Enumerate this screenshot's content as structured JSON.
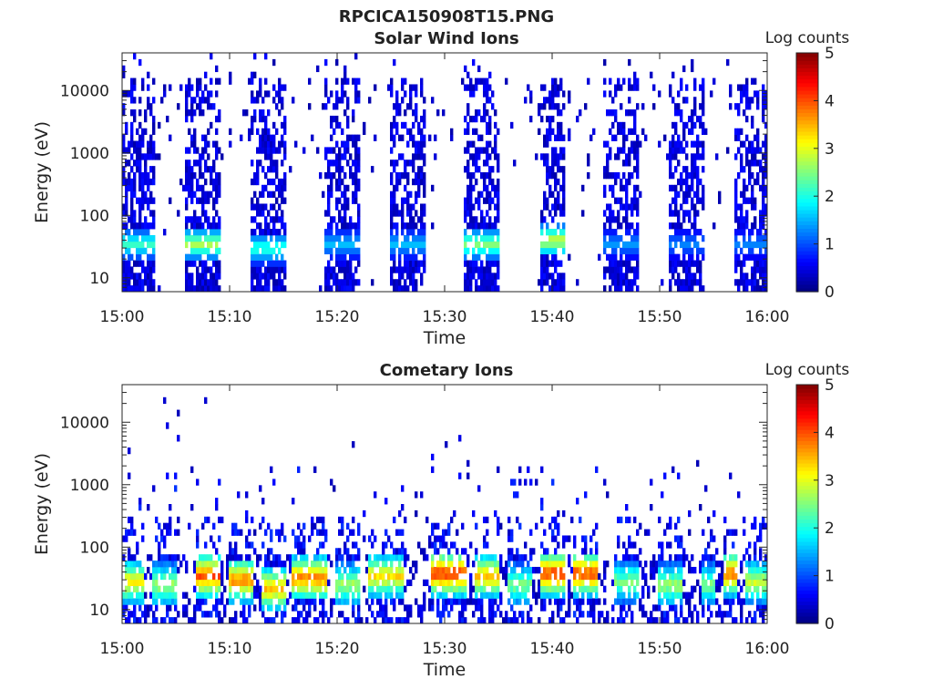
{
  "figure": {
    "filename": "RPCICA150908T15.PNG"
  },
  "chart_data": [
    {
      "type": "heatmap",
      "title": "Solar Wind Ions",
      "xlabel": "Time",
      "ylabel": "Energy (eV)",
      "x_ticks": [
        "15:00",
        "15:10",
        "15:20",
        "15:30",
        "15:40",
        "15:50",
        "16:00"
      ],
      "xlim": [
        "15:00",
        "16:00"
      ],
      "y_scale": "log",
      "y_ticks": [
        "10",
        "100",
        "1000",
        "10000"
      ],
      "ylim": [
        6,
        40000
      ],
      "colorbar": {
        "label": "Log counts",
        "range": [
          0,
          5
        ],
        "ticks": [
          "0",
          "1",
          "2",
          "3",
          "4",
          "5"
        ],
        "colormap": "jet"
      },
      "background": "#ffffff",
      "pattern": "periodic sweep bursts; faint counts up to ~20000 eV, peak log counts ~3",
      "bursts": [
        {
          "start": "15:00",
          "end": "15:03",
          "peak_energy_eV": 35,
          "peak_log_counts": 2.2
        },
        {
          "start": "15:06",
          "end": "15:09",
          "peak_energy_eV": 35,
          "peak_log_counts": 2.8
        },
        {
          "start": "15:12",
          "end": "15:15",
          "peak_energy_eV": 30,
          "peak_log_counts": 2.2
        },
        {
          "start": "15:19",
          "end": "15:22",
          "peak_energy_eV": 35,
          "peak_log_counts": 1.6
        },
        {
          "start": "15:25",
          "end": "15:28",
          "peak_energy_eV": 35,
          "peak_log_counts": 1.6
        },
        {
          "start": "15:32",
          "end": "15:35",
          "peak_energy_eV": 35,
          "peak_log_counts": 2.6
        },
        {
          "start": "15:39",
          "end": "15:41",
          "peak_energy_eV": 40,
          "peak_log_counts": 3.0
        },
        {
          "start": "15:45",
          "end": "15:48",
          "peak_energy_eV": 35,
          "peak_log_counts": 1.4
        },
        {
          "start": "15:51",
          "end": "15:54",
          "peak_energy_eV": 35,
          "peak_log_counts": 1.3
        },
        {
          "start": "15:57",
          "end": "16:00",
          "peak_energy_eV": 35,
          "peak_log_counts": 1.3
        }
      ]
    },
    {
      "type": "heatmap",
      "title": "Cometary Ions",
      "xlabel": "Time",
      "ylabel": "Energy (eV)",
      "x_ticks": [
        "15:00",
        "15:10",
        "15:20",
        "15:30",
        "15:40",
        "15:50",
        "16:00"
      ],
      "xlim": [
        "15:00",
        "16:00"
      ],
      "y_scale": "log",
      "y_ticks": [
        "10",
        "100",
        "1000",
        "10000"
      ],
      "ylim": [
        6,
        40000
      ],
      "colorbar": {
        "label": "Log counts",
        "range": [
          0,
          5
        ],
        "ticks": [
          "0",
          "1",
          "2",
          "3",
          "4",
          "5"
        ],
        "colormap": "jet"
      },
      "background": "#ffffff",
      "pattern": "dense band between ~10 and ~70 eV with sparse counts up to ~10000 eV",
      "bursts": [
        {
          "start": "15:00",
          "end": "15:02",
          "peak_energy_eV": 28,
          "peak_log_counts": 3.2
        },
        {
          "start": "15:03",
          "end": "15:05",
          "peak_energy_eV": 25,
          "peak_log_counts": 2.6
        },
        {
          "start": "15:07",
          "end": "15:09",
          "peak_energy_eV": 35,
          "peak_log_counts": 3.9
        },
        {
          "start": "15:10",
          "end": "15:12",
          "peak_energy_eV": 30,
          "peak_log_counts": 3.7
        },
        {
          "start": "15:13",
          "end": "15:15",
          "peak_energy_eV": 22,
          "peak_log_counts": 3.4
        },
        {
          "start": "15:16",
          "end": "15:19",
          "peak_energy_eV": 32,
          "peak_log_counts": 3.7
        },
        {
          "start": "15:20",
          "end": "15:22",
          "peak_energy_eV": 25,
          "peak_log_counts": 2.6
        },
        {
          "start": "15:23",
          "end": "15:26",
          "peak_energy_eV": 35,
          "peak_log_counts": 3.2
        },
        {
          "start": "15:29",
          "end": "15:32",
          "peak_energy_eV": 38,
          "peak_log_counts": 4.1
        },
        {
          "start": "15:33",
          "end": "15:35",
          "peak_energy_eV": 35,
          "peak_log_counts": 3.4
        },
        {
          "start": "15:36",
          "end": "15:38",
          "peak_energy_eV": 25,
          "peak_log_counts": 2.4
        },
        {
          "start": "15:39",
          "end": "15:41",
          "peak_energy_eV": 38,
          "peak_log_counts": 4.1
        },
        {
          "start": "15:42",
          "end": "15:44",
          "peak_energy_eV": 38,
          "peak_log_counts": 4.0
        },
        {
          "start": "15:46",
          "end": "15:48",
          "peak_energy_eV": 28,
          "peak_log_counts": 2.4
        },
        {
          "start": "15:50",
          "end": "15:52",
          "peak_energy_eV": 25,
          "peak_log_counts": 2.6
        },
        {
          "start": "15:54",
          "end": "15:55",
          "peak_energy_eV": 25,
          "peak_log_counts": 2.4
        },
        {
          "start": "15:56",
          "end": "15:57",
          "peak_energy_eV": 38,
          "peak_log_counts": 3.8
        },
        {
          "start": "15:58",
          "end": "16:00",
          "peak_energy_eV": 28,
          "peak_log_counts": 2.8
        }
      ]
    }
  ]
}
